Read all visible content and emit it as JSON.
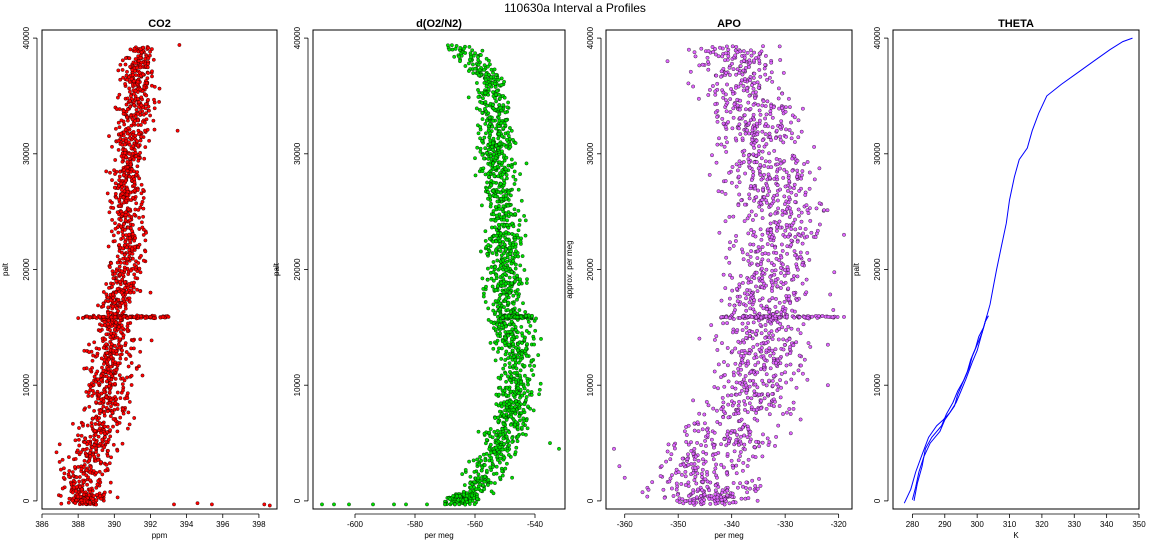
{
  "title": "110630a   Interval a Profiles",
  "colors": {
    "co2": "#ff0000",
    "o2n2": "#00dd00",
    "apo": "#e066ff",
    "theta": "#0000ff",
    "edge": "#000000"
  },
  "chart_data": [
    {
      "type": "scatter",
      "title": "CO2",
      "xlabel": "ppm",
      "ylabel": "palt",
      "xlim": [
        386,
        399
      ],
      "ylim": [
        -700,
        40700
      ],
      "xticks": [
        386,
        388,
        390,
        392,
        394,
        396,
        398
      ],
      "yticks": [
        0,
        10000,
        20000,
        30000,
        40000
      ],
      "profile": [
        [
          -300,
          388.5
        ],
        [
          2000,
          388.3
        ],
        [
          4000,
          388.7
        ],
        [
          6000,
          389.2
        ],
        [
          8000,
          389.5
        ],
        [
          10000,
          389.7
        ],
        [
          12000,
          389.8
        ],
        [
          14000,
          390.0
        ],
        [
          16000,
          390.0
        ],
        [
          18000,
          390.3
        ],
        [
          20000,
          390.6
        ],
        [
          22000,
          390.8
        ],
        [
          24000,
          390.8
        ],
        [
          26000,
          390.7
        ],
        [
          28000,
          390.7
        ],
        [
          30000,
          390.8
        ],
        [
          32000,
          391.0
        ],
        [
          34000,
          391.2
        ],
        [
          36000,
          391.3
        ],
        [
          38000,
          391.3
        ],
        [
          39300,
          391.6
        ]
      ],
      "series": [
        {
          "name": "",
          "color": "#ff0000",
          "points": [
            [
              -300,
              398.3
            ],
            [
              -400,
              398.6
            ],
            [
              -200,
              394.6
            ],
            [
              -300,
              395.4
            ],
            [
              -300,
              393.3
            ],
            [
              15900,
              393.0
            ],
            [
              15900,
              392.0
            ],
            [
              15800,
              388.0
            ],
            [
              4200,
              386.8
            ],
            [
              2000,
              387.2
            ],
            [
              39400,
              393.6
            ],
            [
              32000,
              393.5
            ],
            [
              18000,
              392.0
            ]
          ]
        }
      ],
      "bands": [
        {
          "palt": 15900,
          "from": 388.0,
          "to": 393.0
        }
      ]
    },
    {
      "type": "scatter",
      "title": "d(O2/N2)",
      "xlabel": "per meg",
      "ylabel": "palt",
      "xlim": [
        -614,
        -530
      ],
      "ylim": [
        -700,
        40700
      ],
      "xticks": [
        -600,
        -580,
        -560,
        -540
      ],
      "yticks": [
        0,
        10000,
        20000,
        30000,
        40000
      ],
      "profile": [
        [
          -300,
          -565
        ],
        [
          2000,
          -557
        ],
        [
          4000,
          -553
        ],
        [
          6000,
          -550
        ],
        [
          8000,
          -547
        ],
        [
          10000,
          -546
        ],
        [
          12000,
          -546
        ],
        [
          14000,
          -547
        ],
        [
          16000,
          -549
        ],
        [
          18000,
          -550
        ],
        [
          20000,
          -550
        ],
        [
          22000,
          -550
        ],
        [
          24000,
          -550
        ],
        [
          26000,
          -551
        ],
        [
          28000,
          -552
        ],
        [
          30000,
          -553
        ],
        [
          32000,
          -553
        ],
        [
          34000,
          -554
        ],
        [
          36000,
          -555
        ],
        [
          37500,
          -558
        ],
        [
          38500,
          -562
        ],
        [
          39400,
          -568
        ]
      ],
      "series": [
        {
          "name": "",
          "color": "#00dd00",
          "points": [
            [
              -300,
              -611
            ],
            [
              -300,
              -607
            ],
            [
              -300,
              -602
            ],
            [
              -300,
              -594
            ],
            [
              -300,
              -587
            ],
            [
              -300,
              -583
            ],
            [
              -300,
              -576
            ],
            [
              -300,
              -570
            ],
            [
              4500,
              -532
            ],
            [
              5000,
              -535
            ],
            [
              14000,
              -538
            ],
            [
              16000,
              -541
            ],
            [
              400,
              -566
            ],
            [
              38000,
              -565
            ]
          ]
        }
      ],
      "bands": [
        {
          "palt": 15900,
          "from": -551,
          "to": -541
        }
      ]
    },
    {
      "type": "scatter",
      "title": "APO",
      "xlabel": "per meg",
      "ylabel": "approx. per meg",
      "xlim": [
        -363.5,
        -317.5
      ],
      "ylim": [
        -700,
        40700
      ],
      "xticks": [
        -360,
        -350,
        -340,
        -330,
        -320
      ],
      "yticks": [
        0,
        10000,
        20000,
        30000,
        40000
      ],
      "profile": [
        [
          0,
          -344
        ],
        [
          2000,
          -346
        ],
        [
          4000,
          -344
        ],
        [
          6000,
          -340
        ],
        [
          8000,
          -337
        ],
        [
          10000,
          -336
        ],
        [
          12000,
          -334
        ],
        [
          14000,
          -334
        ],
        [
          16000,
          -333
        ],
        [
          18000,
          -333
        ],
        [
          20000,
          -332
        ],
        [
          22000,
          -332
        ],
        [
          24000,
          -331
        ],
        [
          26000,
          -332
        ],
        [
          28000,
          -333
        ],
        [
          30000,
          -334
        ],
        [
          32000,
          -335
        ],
        [
          34000,
          -336
        ],
        [
          36000,
          -338
        ],
        [
          38000,
          -339
        ],
        [
          39300,
          -340
        ]
      ],
      "series": [
        {
          "name": "",
          "color": "#e066ff",
          "points": [
            [
              4500,
              -362
            ],
            [
              3000,
              -361
            ],
            [
              2000,
              -360
            ],
            [
              23000,
              -319
            ],
            [
              15900,
              -319
            ],
            [
              16500,
              -321
            ],
            [
              13500,
              -322
            ],
            [
              10000,
              -322
            ],
            [
              38000,
              -352
            ],
            [
              39000,
              -348
            ]
          ]
        }
      ],
      "bands": [
        {
          "palt": 15900,
          "from": -342,
          "to": -320
        }
      ]
    },
    {
      "type": "line",
      "title": "THETA",
      "xlabel": "K",
      "ylabel": "palt",
      "xlim": [
        274,
        350
      ],
      "ylim": [
        -700,
        40700
      ],
      "xticks": [
        280,
        290,
        300,
        310,
        320,
        330,
        340,
        350
      ],
      "yticks": [
        0,
        10000,
        20000,
        30000,
        40000
      ],
      "series": [
        {
          "name": "",
          "color": "#0000ff",
          "points": [
            [
              -200,
              277.5
            ],
            [
              1000,
              279.5
            ],
            [
              2500,
              281.0
            ],
            [
              4000,
              283.0
            ],
            [
              5500,
              285.0
            ],
            [
              6500,
              287.5
            ],
            [
              7000,
              289.5
            ],
            [
              7600,
              291.5
            ],
            [
              8500,
              293.5
            ],
            [
              9500,
              295.0
            ],
            [
              10500,
              296.5
            ],
            [
              12000,
              298.5
            ],
            [
              13000,
              300.0
            ],
            [
              14000,
              301.0
            ],
            [
              15000,
              302.0
            ],
            [
              16000,
              303.0
            ],
            [
              17000,
              304.0
            ],
            [
              18500,
              305.0
            ],
            [
              20000,
              306.0
            ],
            [
              22000,
              307.5
            ],
            [
              24000,
              309.0
            ],
            [
              26000,
              310.0
            ],
            [
              28000,
              311.5
            ],
            [
              29500,
              313.0
            ],
            [
              30500,
              315.5
            ],
            [
              32000,
              317.0
            ],
            [
              33500,
              319.0
            ],
            [
              35000,
              321.5
            ],
            [
              36000,
              326.0
            ],
            [
              37000,
              331.0
            ],
            [
              38000,
              336.0
            ],
            [
              39000,
              341.0
            ],
            [
              39700,
              345.0
            ],
            [
              40000,
              348.0
            ]
          ]
        },
        {
          "name": "",
          "color": "#0000ff",
          "points": [
            [
              0,
              280.5
            ],
            [
              1500,
              281.5
            ],
            [
              3000,
              283.0
            ],
            [
              4500,
              284.0
            ],
            [
              5500,
              286.0
            ],
            [
              6500,
              289.0
            ],
            [
              7500,
              290.5
            ],
            [
              8500,
              292.5
            ],
            [
              9500,
              294.0
            ],
            [
              10500,
              296.0
            ],
            [
              11500,
              297.5
            ],
            [
              12500,
              298.5
            ],
            [
              13500,
              300.0
            ],
            [
              14500,
              301.5
            ],
            [
              15500,
              302.5
            ],
            [
              16000,
              303.5
            ]
          ]
        },
        {
          "name": "",
          "color": "#0000ff",
          "points": [
            [
              100,
              280.0
            ],
            [
              1200,
              281.0
            ],
            [
              2500,
              282.0
            ],
            [
              3800,
              283.5
            ],
            [
              5000,
              285.5
            ],
            [
              6000,
              288.5
            ],
            [
              7000,
              290.0
            ],
            [
              8200,
              293.0
            ],
            [
              9200,
              294.0
            ],
            [
              10200,
              295.5
            ],
            [
              11200,
              297.0
            ],
            [
              12200,
              298.0
            ],
            [
              13200,
              299.5
            ],
            [
              14200,
              300.5
            ],
            [
              15000,
              302.0
            ],
            [
              16000,
              303.0
            ]
          ]
        }
      ]
    }
  ]
}
